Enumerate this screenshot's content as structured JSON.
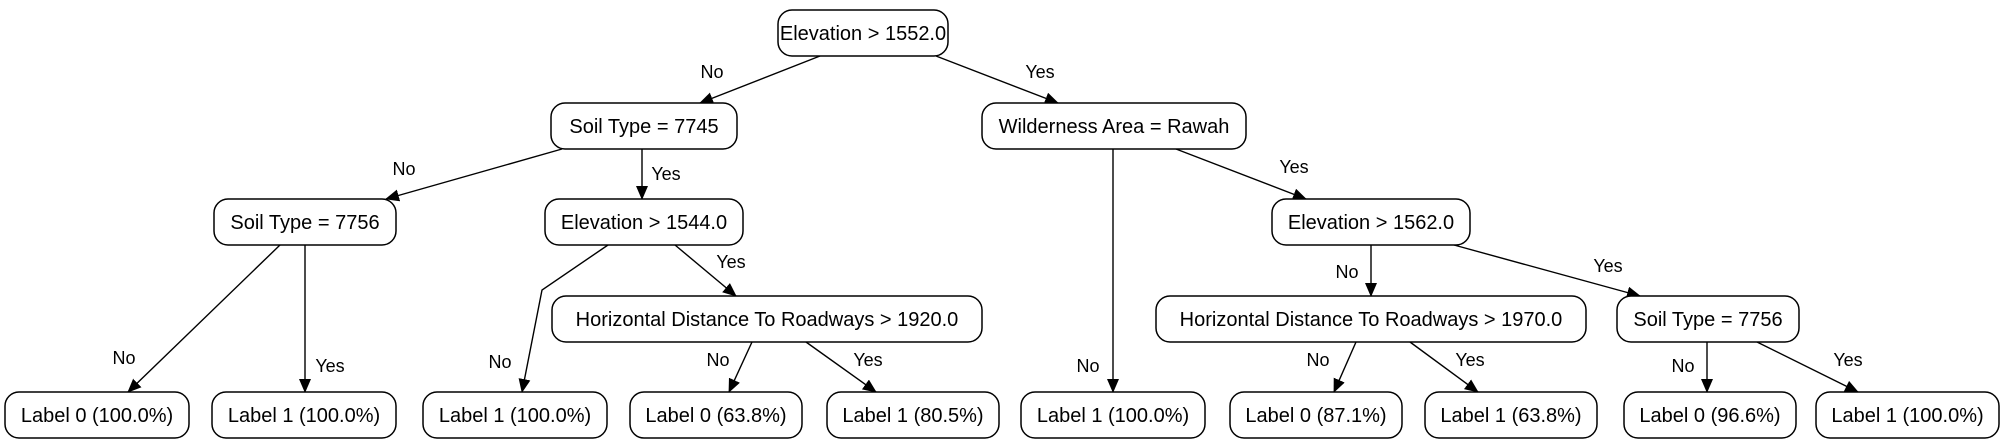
{
  "tree": {
    "nodes": [
      {
        "id": "n0",
        "label": "Elevation > 1552.0"
      },
      {
        "id": "n1",
        "label": "Soil Type = 7745"
      },
      {
        "id": "n2",
        "label": "Wilderness Area = Rawah"
      },
      {
        "id": "n3",
        "label": "Soil Type = 7756"
      },
      {
        "id": "n4",
        "label": "Elevation > 1544.0"
      },
      {
        "id": "n5",
        "label": "Horizontal Distance To Roadways > 1920.0"
      },
      {
        "id": "n6",
        "label": "Elevation > 1562.0"
      },
      {
        "id": "n7",
        "label": "Horizontal Distance To Roadways > 1970.0"
      },
      {
        "id": "n8",
        "label": "Soil Type = 7756"
      },
      {
        "id": "l1",
        "label": "Label 0 (100.0%)"
      },
      {
        "id": "l2",
        "label": "Label 1 (100.0%)"
      },
      {
        "id": "l3",
        "label": "Label 1 (100.0%)"
      },
      {
        "id": "l4",
        "label": "Label 0 (63.8%)"
      },
      {
        "id": "l5",
        "label": "Label 1 (80.5%)"
      },
      {
        "id": "l6",
        "label": "Label 1 (100.0%)"
      },
      {
        "id": "l7",
        "label": "Label 0 (87.1%)"
      },
      {
        "id": "l8",
        "label": "Label 1 (63.8%)"
      },
      {
        "id": "l9",
        "label": "Label 0 (96.6%)"
      },
      {
        "id": "l10",
        "label": "Label 1 (100.0%)"
      }
    ],
    "edges": [
      {
        "from": "n0",
        "to": "n1",
        "label": "No"
      },
      {
        "from": "n0",
        "to": "n2",
        "label": "Yes"
      },
      {
        "from": "n1",
        "to": "n3",
        "label": "No"
      },
      {
        "from": "n1",
        "to": "n4",
        "label": "Yes"
      },
      {
        "from": "n3",
        "to": "l1",
        "label": "No"
      },
      {
        "from": "n3",
        "to": "l2",
        "label": "Yes"
      },
      {
        "from": "n4",
        "to": "l3",
        "label": "No"
      },
      {
        "from": "n4",
        "to": "n5",
        "label": "Yes"
      },
      {
        "from": "n5",
        "to": "l4",
        "label": "No"
      },
      {
        "from": "n5",
        "to": "l5",
        "label": "Yes"
      },
      {
        "from": "n2",
        "to": "l6",
        "label": "No"
      },
      {
        "from": "n2",
        "to": "n6",
        "label": "Yes"
      },
      {
        "from": "n6",
        "to": "n7",
        "label": "No"
      },
      {
        "from": "n6",
        "to": "n8",
        "label": "Yes"
      },
      {
        "from": "n7",
        "to": "l7",
        "label": "No"
      },
      {
        "from": "n7",
        "to": "l8",
        "label": "Yes"
      },
      {
        "from": "n8",
        "to": "l9",
        "label": "No"
      },
      {
        "from": "n8",
        "to": "l10",
        "label": "Yes"
      }
    ]
  }
}
